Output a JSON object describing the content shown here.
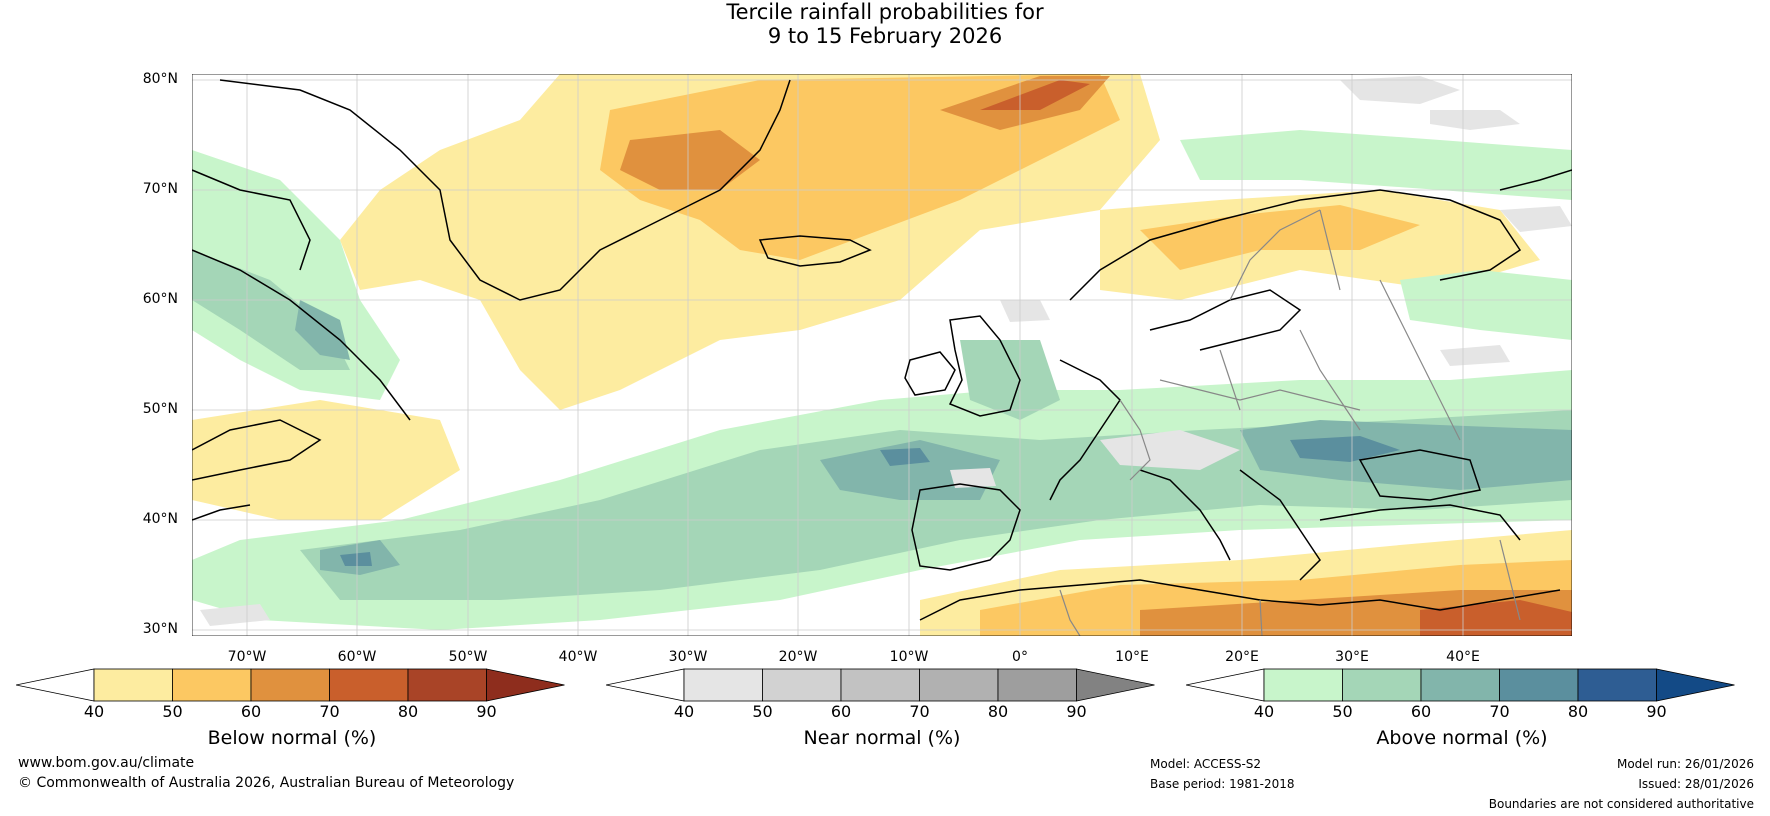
{
  "title": {
    "line1": "Tercile rainfall probabilities for",
    "line2": "9 to 15 February 2026"
  },
  "map": {
    "lat_labels": [
      "80°N",
      "70°N",
      "60°N",
      "50°N",
      "40°N",
      "30°N"
    ],
    "lon_labels": [
      "70°W",
      "60°W",
      "50°W",
      "40°W",
      "30°W",
      "20°W",
      "10°W",
      "0°",
      "10°E",
      "20°E",
      "30°E",
      "40°E"
    ],
    "ocean_color": "#ffffff",
    "coast_color": "#000000",
    "border_color": "#888888",
    "grid_color": "#cccccc"
  },
  "colorbars": {
    "below": {
      "title": "Below normal (%)",
      "ticks": [
        "40",
        "50",
        "60",
        "70",
        "80",
        "90"
      ],
      "colors": [
        "#ffffff",
        "#fdeca0",
        "#fcc862",
        "#e0913e",
        "#c95f2c",
        "#a94427",
        "#8e2d1d"
      ]
    },
    "near": {
      "title": "Near normal (%)",
      "ticks": [
        "40",
        "50",
        "60",
        "70",
        "80",
        "90"
      ],
      "colors": [
        "#ffffff",
        "#e5e5e5",
        "#d2d2d2",
        "#c2c2c2",
        "#b1b1b1",
        "#9e9e9e",
        "#828282"
      ]
    },
    "above": {
      "title": "Above normal (%)",
      "ticks": [
        "40",
        "50",
        "60",
        "70",
        "80",
        "90"
      ],
      "colors": [
        "#ffffff",
        "#c8f5cb",
        "#a4d6b7",
        "#82b5ab",
        "#5b8f9e",
        "#2e5d93",
        "#134a86"
      ]
    }
  },
  "footer": {
    "website": "www.bom.gov.au/climate",
    "copyright": "© Commonwealth of Australia 2026, Australian Bureau of Meteorology",
    "model": "Model: ACCESS-S2",
    "base_period": "Base period: 1981-2018",
    "model_run": "Model run: 26/01/2026",
    "issued": "Issued: 28/01/2026",
    "disclaimer": "Boundaries are not considered authoritative"
  }
}
